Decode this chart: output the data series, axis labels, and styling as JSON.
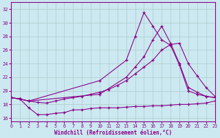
{
  "xlabel": "Windchill (Refroidissement éolien,°C)",
  "background_color": "#cce8f0",
  "grid_color": "#aacccc",
  "line_color": "#880088",
  "xlim": [
    0,
    23
  ],
  "ylim": [
    15.5,
    33
  ],
  "yticks": [
    16,
    18,
    20,
    22,
    24,
    26,
    28,
    30,
    32
  ],
  "xticks": [
    0,
    1,
    2,
    3,
    4,
    5,
    6,
    7,
    8,
    9,
    10,
    11,
    12,
    13,
    14,
    15,
    16,
    17,
    18,
    19,
    20,
    21,
    22,
    23
  ],
  "series1_x": [
    0,
    1,
    2,
    3,
    4,
    5,
    6,
    7,
    8,
    9,
    10,
    11,
    12,
    13,
    14,
    15,
    16,
    17,
    18,
    19,
    20,
    21,
    22,
    23
  ],
  "series1_y": [
    19.0,
    18.8,
    17.5,
    16.5,
    16.5,
    16.7,
    16.8,
    17.2,
    17.2,
    17.4,
    17.5,
    17.5,
    17.5,
    17.6,
    17.7,
    17.7,
    17.8,
    17.8,
    17.9,
    18.0,
    18.0,
    18.1,
    18.2,
    18.5
  ],
  "series2_x": [
    0,
    1,
    2,
    3,
    4,
    5,
    6,
    7,
    8,
    9,
    10,
    11,
    12,
    13,
    14,
    15,
    16,
    17,
    18,
    19,
    20,
    21,
    22,
    23
  ],
  "series2_y": [
    19.0,
    18.8,
    18.5,
    18.3,
    18.2,
    18.5,
    18.8,
    19.0,
    19.2,
    19.5,
    19.8,
    20.2,
    20.8,
    21.5,
    22.5,
    23.5,
    24.5,
    26.0,
    26.8,
    27.0,
    24.0,
    22.2,
    20.5,
    19.2
  ],
  "series3_x": [
    0,
    1,
    2,
    10,
    13,
    14,
    15,
    16,
    17,
    18,
    19,
    20,
    21,
    22,
    23
  ],
  "series3_y": [
    19.0,
    18.8,
    18.5,
    19.5,
    22.0,
    23.5,
    25.0,
    27.5,
    29.5,
    27.0,
    24.0,
    20.5,
    19.8,
    19.2,
    19.0
  ],
  "series4_x": [
    0,
    1,
    2,
    10,
    13,
    14,
    15,
    16,
    17,
    18,
    19,
    20,
    21,
    22,
    23
  ],
  "series4_y": [
    19.0,
    18.8,
    18.5,
    21.5,
    24.5,
    28.0,
    31.5,
    29.5,
    27.5,
    26.7,
    23.8,
    20.0,
    19.5,
    19.2,
    19.0
  ]
}
